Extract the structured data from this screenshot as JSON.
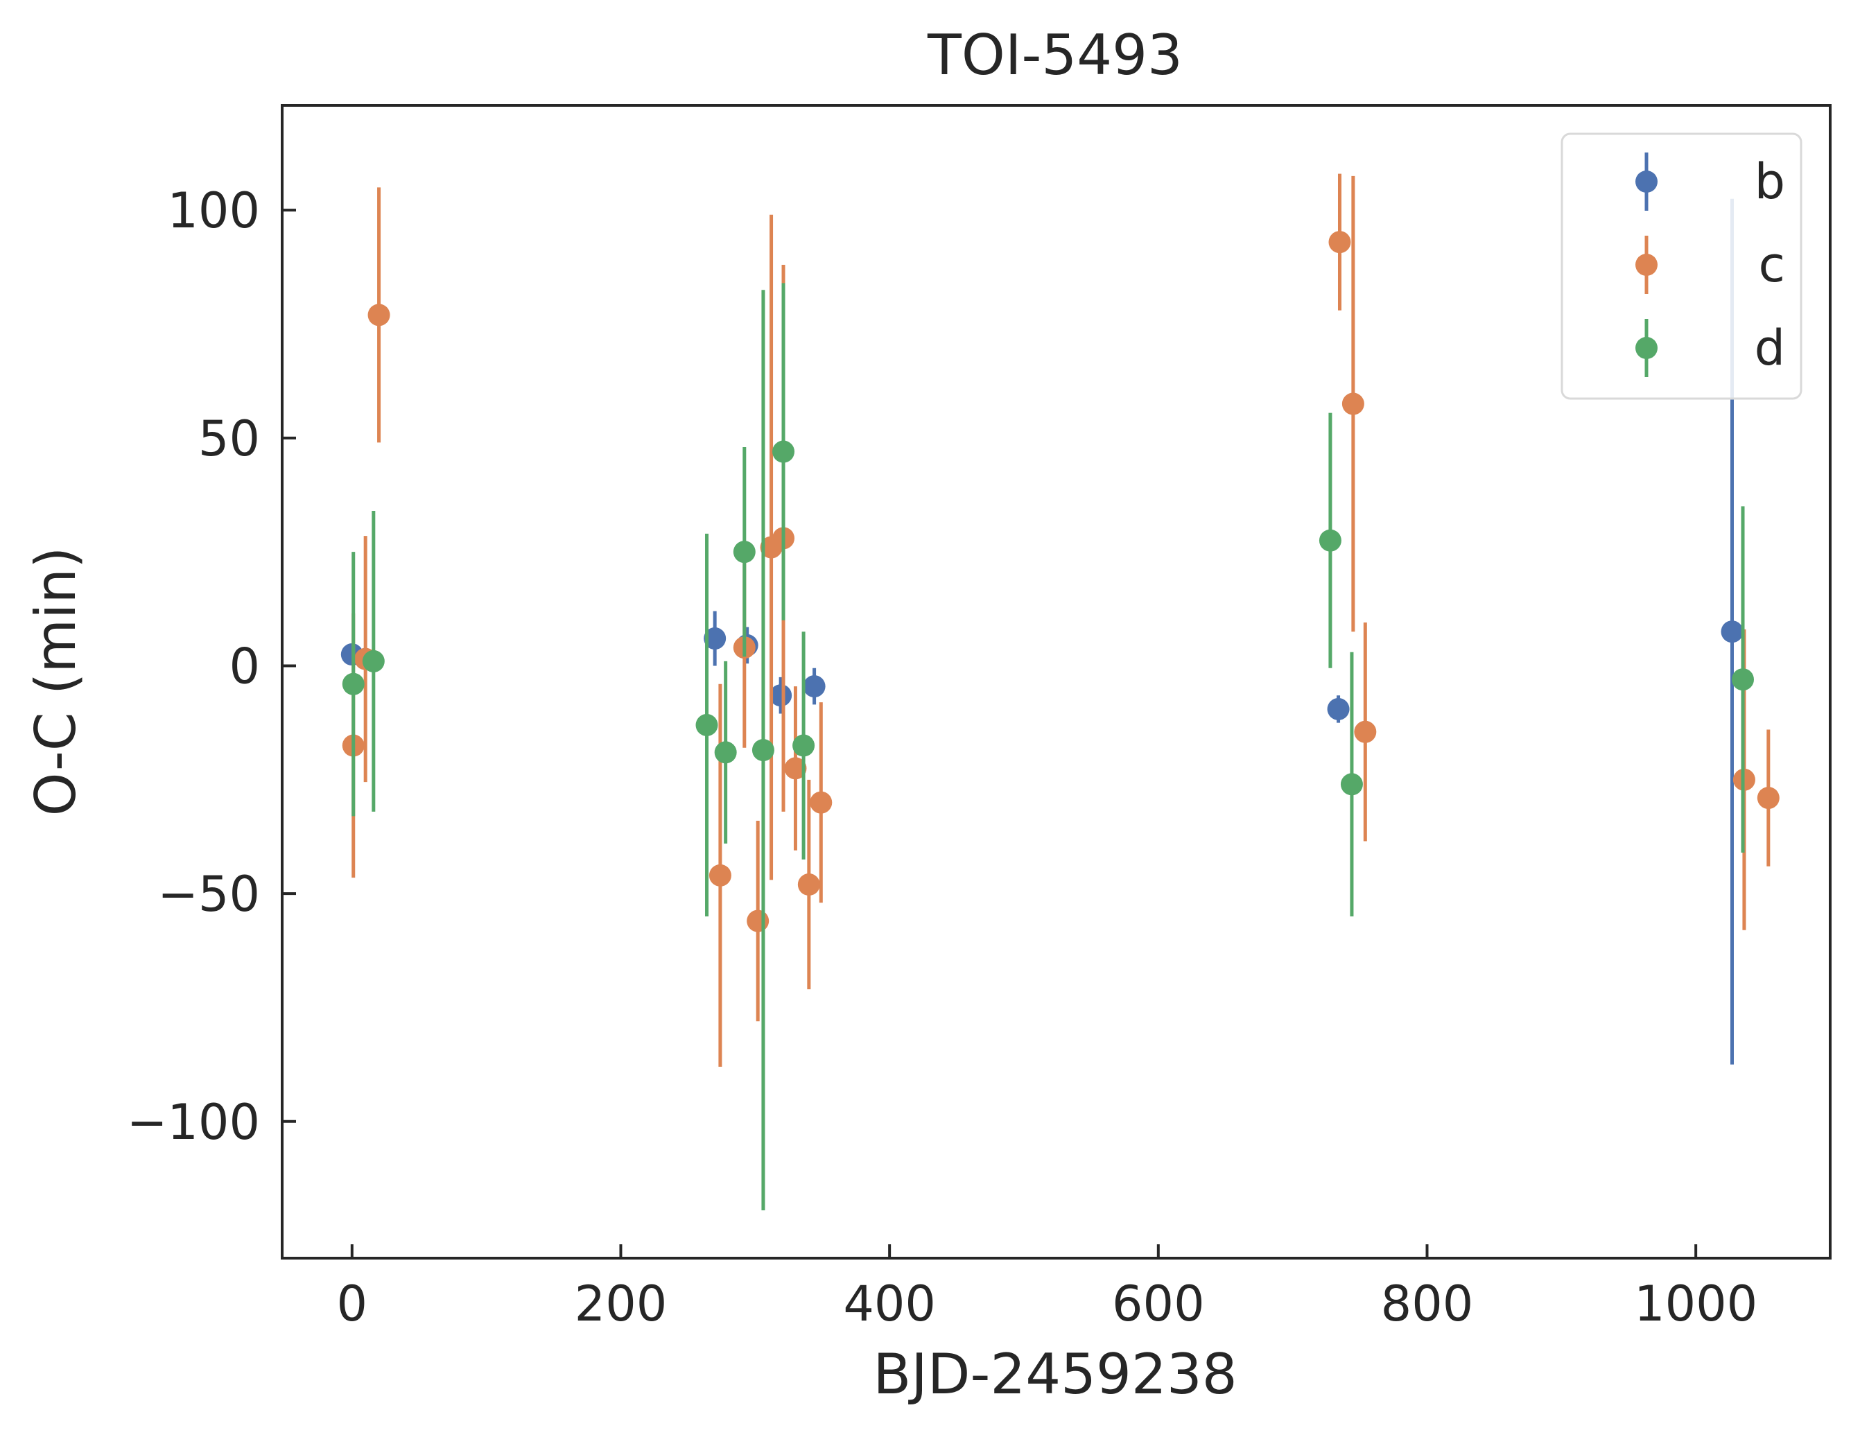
{
  "chart_data": {
    "type": "scatter",
    "title": "TOI-5493",
    "xlabel": "BJD-2459238",
    "ylabel": "O-C (min)",
    "xlim": [
      -52,
      1100
    ],
    "ylim": [
      -130,
      123
    ],
    "xticks": [
      0,
      200,
      400,
      600,
      800,
      1000
    ],
    "xtick_labels": [
      "0",
      "200",
      "400",
      "600",
      "800",
      "1000"
    ],
    "yticks": [
      -100,
      -50,
      0,
      50,
      100
    ],
    "ytick_labels": [
      "−100",
      "−50",
      "0",
      "50",
      "100"
    ],
    "grid": false,
    "legend": "upper right",
    "series": [
      {
        "name": "b",
        "color": "#4c72b0",
        "points": [
          {
            "x": 0,
            "y": 2.5,
            "err": 2
          },
          {
            "x": 270,
            "y": 6,
            "err": 6
          },
          {
            "x": 294,
            "y": 4.5,
            "err": 4
          },
          {
            "x": 319,
            "y": -6.5,
            "err": 4
          },
          {
            "x": 344,
            "y": -4.5,
            "err": 4
          },
          {
            "x": 734,
            "y": -9.5,
            "err": 3
          },
          {
            "x": 1027,
            "y": 7.5,
            "err": 95
          }
        ]
      },
      {
        "name": "c",
        "color": "#dd8452",
        "points": [
          {
            "x": 1,
            "y": -17.5,
            "err": 29
          },
          {
            "x": 10,
            "y": 1.5,
            "err": 27
          },
          {
            "x": 20,
            "y": 77,
            "err": 28
          },
          {
            "x": 274,
            "y": -46,
            "err": 42
          },
          {
            "x": 292,
            "y": 4,
            "err": 22
          },
          {
            "x": 302,
            "y": -56,
            "err": 22
          },
          {
            "x": 312,
            "y": 26,
            "err": 73
          },
          {
            "x": 321,
            "y": 28,
            "err": 60
          },
          {
            "x": 330,
            "y": -22.5,
            "err": 18
          },
          {
            "x": 340,
            "y": -48,
            "err": 23
          },
          {
            "x": 349,
            "y": -30,
            "err": 22
          },
          {
            "x": 735,
            "y": 93,
            "err": 15
          },
          {
            "x": 745,
            "y": 57.5,
            "err": 50
          },
          {
            "x": 754,
            "y": -14.5,
            "err": 24
          },
          {
            "x": 1036,
            "y": -25,
            "err": 33
          },
          {
            "x": 1054,
            "y": -29,
            "err": 15
          }
        ]
      },
      {
        "name": "d",
        "color": "#55a868",
        "points": [
          {
            "x": 1,
            "y": -4,
            "err": 29
          },
          {
            "x": 16,
            "y": 1,
            "err": 33
          },
          {
            "x": 264,
            "y": -13,
            "err": 42
          },
          {
            "x": 278,
            "y": -19,
            "err": 20
          },
          {
            "x": 292,
            "y": 25,
            "err": 23
          },
          {
            "x": 306,
            "y": -18.5,
            "err": 101
          },
          {
            "x": 321,
            "y": 47,
            "err": 37
          },
          {
            "x": 336,
            "y": -17.5,
            "err": 25
          },
          {
            "x": 728,
            "y": 27.5,
            "err": 28
          },
          {
            "x": 744,
            "y": -26,
            "err": 29
          },
          {
            "x": 1035,
            "y": -3,
            "err": 38
          }
        ]
      }
    ]
  }
}
